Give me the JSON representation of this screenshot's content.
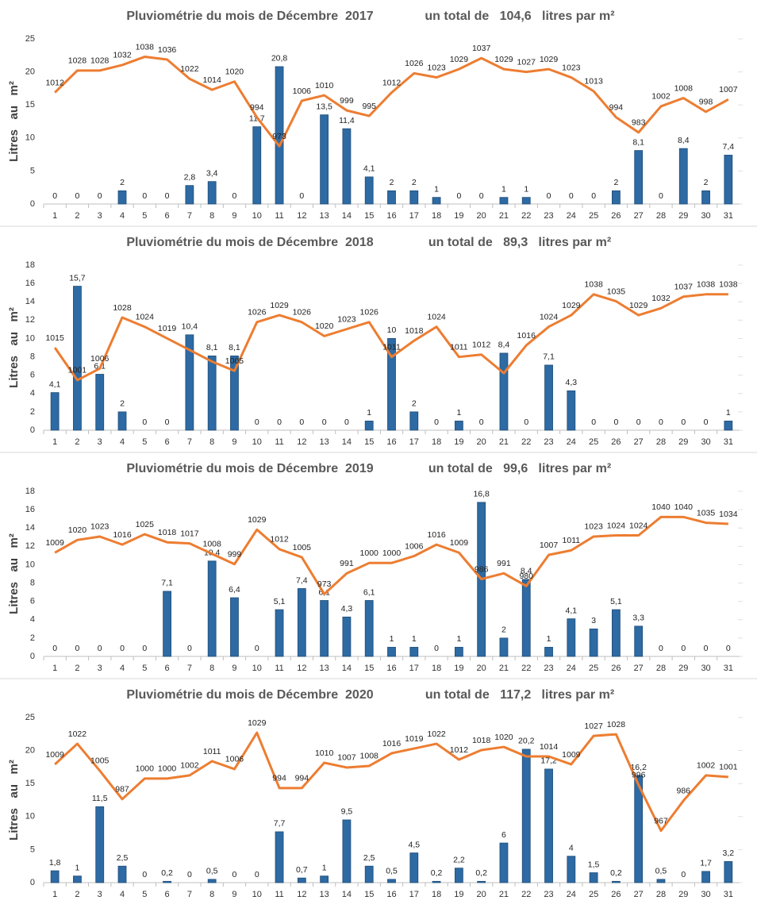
{
  "chart_data": [
    {
      "type": "bar",
      "title": "Pluviométrie du mois de Décembre  2017",
      "subtitle": "un total de   104,6   litres par m²",
      "ylabel": "Litres   au   m²",
      "categories": [
        "1",
        "2",
        "3",
        "4",
        "5",
        "6",
        "7",
        "8",
        "9",
        "10",
        "11",
        "12",
        "13",
        "14",
        "15",
        "16",
        "17",
        "18",
        "19",
        "20",
        "21",
        "22",
        "23",
        "24",
        "25",
        "26",
        "27",
        "28",
        "29",
        "30",
        "31"
      ],
      "ylim": [
        0,
        25
      ],
      "yticks": [
        0,
        5,
        10,
        15,
        20,
        25
      ],
      "y2lim": [
        931,
        1051
      ],
      "series": [
        {
          "color": "#2e6aa3",
          "values": [
            0,
            0,
            0,
            2,
            0,
            0,
            2.8,
            3.4,
            0,
            11.7,
            20.8,
            0,
            13.5,
            11.4,
            4.1,
            2,
            2,
            1,
            0,
            0,
            1,
            1,
            0,
            0,
            0,
            2,
            8.1,
            0,
            8.4,
            2,
            7.4
          ],
          "value_labels": [
            "0",
            "0",
            "0",
            "2",
            "0",
            "0",
            "2,8",
            "3,4",
            "0",
            "11,7",
            "20,8",
            "0",
            "13,5",
            "11,4",
            "4,1",
            "2",
            "2",
            "1",
            "0",
            "0",
            "1",
            "1",
            "0",
            "0",
            "0",
            "2",
            "8,1",
            "0",
            "8,4",
            "2",
            "7,4"
          ]
        },
        {
          "type": "line",
          "axis": "y2",
          "color": "#ed7d31",
          "values": [
            1012,
            1028,
            1028,
            1032,
            1038,
            1036,
            1022,
            1014,
            1020,
            994,
            973,
            1006,
            1010,
            999,
            995,
            1012,
            1026,
            1023,
            1029,
            1037,
            1029,
            1027,
            1029,
            1023,
            1013,
            994,
            983,
            1002,
            1008,
            998,
            1007
          ],
          "value_labels": [
            "1012",
            "1028",
            "1028",
            "1032",
            "1038",
            "1036",
            "1022",
            "1014",
            "1020",
            "994",
            "973",
            "1006",
            "1010",
            "999",
            "995",
            "1012",
            "1026",
            "1023",
            "1029",
            "1037",
            "1029",
            "1027",
            "1029",
            "1023",
            "1013",
            "994",
            "983",
            "1002",
            "1008",
            "998",
            "1007"
          ]
        }
      ]
    },
    {
      "type": "bar",
      "title": "Pluviométrie du mois de Décembre  2018",
      "subtitle": "un total de   89,3   litres par m²",
      "ylabel": "Litres   au   m²",
      "categories": [
        "1",
        "2",
        "3",
        "4",
        "5",
        "6",
        "7",
        "8",
        "9",
        "10",
        "11",
        "12",
        "13",
        "14",
        "15",
        "16",
        "17",
        "18",
        "19",
        "20",
        "21",
        "22",
        "23",
        "24",
        "25",
        "26",
        "27",
        "28",
        "29",
        "30",
        "31"
      ],
      "ylim": [
        0,
        18
      ],
      "yticks": [
        0,
        2,
        4,
        6,
        8,
        10,
        12,
        14,
        16,
        18
      ],
      "y2lim": [
        979.4,
        1050.6
      ],
      "series": [
        {
          "color": "#2e6aa3",
          "values": [
            4.1,
            15.7,
            6.1,
            2,
            0,
            0,
            10.4,
            8.1,
            8.1,
            0,
            0,
            0,
            0,
            0,
            1,
            10,
            2,
            0,
            1,
            0,
            8.4,
            0,
            7.1,
            4.3,
            0,
            0,
            0,
            0,
            0,
            0,
            1
          ],
          "value_labels": [
            "4,1",
            "15,7",
            "6,1",
            "2",
            "0",
            "0",
            "10,4",
            "8,1",
            "8,1",
            "0",
            "0",
            "0",
            "0",
            "0",
            "1",
            "10",
            "2",
            "0",
            "1",
            "0",
            "8,4",
            "0",
            "7,1",
            "4,3",
            "0",
            "0",
            "0",
            "0",
            "0",
            "0",
            "1"
          ]
        },
        {
          "type": "line",
          "axis": "y2",
          "color": "#ed7d31",
          "values": [
            1015,
            1001,
            1006,
            1028,
            1024,
            1019,
            1014,
            1009,
            1005,
            1026,
            1029,
            1026,
            1020,
            1023,
            1026,
            1011,
            1018,
            1024,
            1011,
            1012,
            1004,
            1016,
            1024,
            1029,
            1038,
            1035,
            1029,
            1032,
            1037,
            1038,
            1038
          ],
          "value_labels": [
            "1015",
            "1001",
            "1006",
            "1028",
            "1024",
            "1019",
            null,
            null,
            "1005",
            "1026",
            "1029",
            "1026",
            "1020",
            "1023",
            "1026",
            "1011",
            "1018",
            "1024",
            "1011",
            "1012",
            null,
            "1016",
            "1024",
            "1029",
            "1038",
            "1035",
            "1029",
            "1032",
            "1037",
            "1038",
            "1038"
          ]
        }
      ]
    },
    {
      "type": "bar",
      "title": "Pluviométrie du mois de Décembre  2019",
      "subtitle": "un total de   99,6   litres par m²",
      "ylabel": "Litres   au   m²",
      "categories": [
        "1",
        "2",
        "3",
        "4",
        "5",
        "6",
        "7",
        "8",
        "9",
        "10",
        "11",
        "12",
        "13",
        "14",
        "15",
        "16",
        "17",
        "18",
        "19",
        "20",
        "21",
        "22",
        "23",
        "24",
        "25",
        "26",
        "27",
        "28",
        "29",
        "30",
        "31"
      ],
      "ylim": [
        0,
        18
      ],
      "yticks": [
        0,
        2,
        4,
        6,
        8,
        10,
        12,
        14,
        16,
        18
      ],
      "y2lim": [
        918.8,
        1062.3
      ],
      "series": [
        {
          "color": "#2e6aa3",
          "values": [
            0,
            0,
            0,
            0,
            0,
            7.1,
            0,
            10.4,
            6.4,
            0,
            5.1,
            7.4,
            6.1,
            4.3,
            6.1,
            1,
            1,
            0,
            1,
            16.8,
            2,
            8.4,
            1,
            4.1,
            3,
            5.1,
            3.3,
            0,
            0,
            0,
            0
          ],
          "value_labels": [
            "0",
            "0",
            "0",
            "0",
            "0",
            "7,1",
            "0",
            "10,4",
            "6,4",
            "0",
            "5,1",
            "7,4",
            "6,1",
            "4,3",
            "6,1",
            "1",
            "1",
            "0",
            "1",
            "16,8",
            "2",
            "8,4",
            "1",
            "4,1",
            "3",
            "5,1",
            "3,3",
            "0",
            "0",
            "0",
            "0"
          ]
        },
        {
          "type": "line",
          "axis": "y2",
          "color": "#ed7d31",
          "values": [
            1009,
            1020,
            1023,
            1016,
            1025,
            1018,
            1017,
            1008,
            999,
            1029,
            1012,
            1005,
            973,
            991,
            1000,
            1000,
            1006,
            1016,
            1009,
            986,
            991,
            980,
            1007,
            1011,
            1023,
            1024,
            1024,
            1040,
            1040,
            1035,
            1034
          ],
          "value_labels": [
            "1009",
            "1020",
            "1023",
            "1016",
            "1025",
            "1018",
            "1017",
            "1008",
            "999",
            "1029",
            "1012",
            "1005",
            "973",
            "991",
            "1000",
            "1000",
            "1006",
            "1016",
            "1009",
            "986",
            "991",
            "980",
            "1007",
            "1011",
            "1023",
            "1024",
            "1024",
            "1040",
            "1040",
            "1035",
            "1034"
          ]
        }
      ]
    },
    {
      "type": "bar",
      "title": "Pluviométrie du mois de Décembre  2020",
      "subtitle": "un total de   117,2   litres par m²",
      "ylabel": "Litres   au   m²",
      "categories": [
        "1",
        "2",
        "3",
        "4",
        "5",
        "6",
        "7",
        "8",
        "9",
        "10",
        "11",
        "12",
        "13",
        "14",
        "15",
        "16",
        "17",
        "18",
        "19",
        "20",
        "21",
        "22",
        "23",
        "24",
        "25",
        "26",
        "27",
        "28",
        "29",
        "30",
        "31"
      ],
      "ylim": [
        0,
        25
      ],
      "yticks": [
        0,
        5,
        10,
        15,
        20,
        25
      ],
      "y2lim": [
        934.2,
        1038.6
      ],
      "series": [
        {
          "color": "#2e6aa3",
          "values": [
            1.8,
            1,
            11.5,
            2.5,
            0,
            0.2,
            0,
            0.5,
            0,
            0,
            7.7,
            0.7,
            1,
            9.5,
            2.5,
            0.5,
            4.5,
            0.2,
            2.2,
            0.2,
            6,
            20.2,
            17.2,
            4,
            1.5,
            0.2,
            16.2,
            0.5,
            0,
            1.7,
            3.2
          ],
          "value_labels": [
            "1,8",
            "1",
            "11,5",
            "2,5",
            "0",
            "0,2",
            "0",
            "0,5",
            "0",
            "0",
            "7,7",
            "0,7",
            "1",
            "9,5",
            "2,5",
            "0,5",
            "4,5",
            "0,2",
            "2,2",
            "0,2",
            "6",
            "20,2",
            "17,2",
            "4",
            "1,5",
            "0,2",
            "16,2",
            "0,5",
            "0",
            "1,7",
            "3,2"
          ]
        },
        {
          "type": "line",
          "axis": "y2",
          "color": "#ed7d31",
          "values": [
            1009,
            1022,
            1005,
            987,
            1000,
            1000,
            1002,
            1011,
            1006,
            1029,
            994,
            994,
            1010,
            1007,
            1008,
            1016,
            1019,
            1022,
            1012,
            1018,
            1020,
            1014,
            1014,
            1009,
            1027,
            1028,
            996,
            967,
            986,
            1002,
            1001
          ],
          "value_labels": [
            "1009",
            "1022",
            "1005",
            "987",
            "1000",
            "1000",
            "1002",
            "1011",
            "1006",
            "1029",
            "994",
            "994",
            "1010",
            "1007",
            "1008",
            "1016",
            "1019",
            "1022",
            "1012",
            "1018",
            "1020",
            null,
            "1014",
            "1009",
            "1027",
            "1028",
            "996",
            "967",
            "986",
            "1002",
            "1001"
          ]
        }
      ]
    }
  ]
}
